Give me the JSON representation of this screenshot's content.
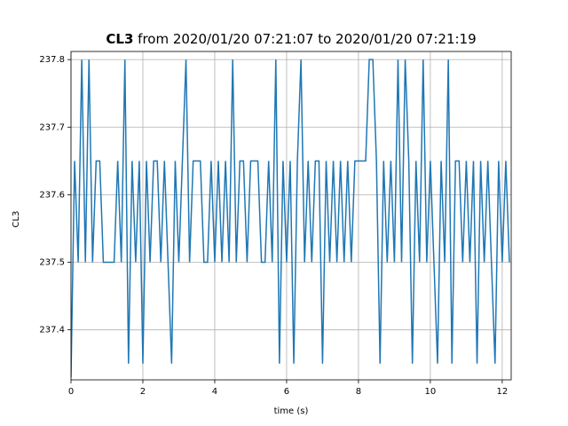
{
  "chart_data": {
    "type": "line",
    "title": {
      "bold": "CL3",
      "rest": "from 2020/01/20 07:21:07 to 2020/01/20 07:21:19"
    },
    "x_label": "time (s)",
    "y_label": "CL3",
    "xlim": [
      0,
      12.25
    ],
    "ylim": [
      237.326,
      237.812
    ],
    "xticks": [
      0,
      2,
      4,
      6,
      8,
      10,
      12
    ],
    "yticks": [
      237.4,
      237.5,
      237.6,
      237.7,
      237.8
    ],
    "grid": true,
    "color": "#1f77b4",
    "x": [
      0,
      0.1,
      0.2,
      0.3,
      0.4,
      0.5,
      0.6,
      0.7,
      0.8,
      0.9,
      1.0,
      1.1,
      1.2,
      1.3,
      1.4,
      1.5,
      1.6,
      1.7,
      1.8,
      1.9,
      2.0,
      2.1,
      2.2,
      2.3,
      2.4,
      2.5,
      2.6,
      2.7,
      2.8,
      2.9,
      3.0,
      3.1,
      3.2,
      3.3,
      3.4,
      3.5,
      3.6,
      3.7,
      3.8,
      3.9,
      4.0,
      4.1,
      4.2,
      4.3,
      4.4,
      4.5,
      4.6,
      4.7,
      4.8,
      4.9,
      5.0,
      5.1,
      5.2,
      5.3,
      5.4,
      5.5,
      5.6,
      5.7,
      5.8,
      5.9,
      6.0,
      6.1,
      6.2,
      6.3,
      6.4,
      6.5,
      6.6,
      6.7,
      6.8,
      6.9,
      7.0,
      7.1,
      7.2,
      7.3,
      7.4,
      7.5,
      7.6,
      7.7,
      7.8,
      7.9,
      8.0,
      8.1,
      8.2,
      8.3,
      8.4,
      8.5,
      8.6,
      8.7,
      8.8,
      8.9,
      9.0,
      9.1,
      9.2,
      9.3,
      9.4,
      9.5,
      9.6,
      9.7,
      9.8,
      9.9,
      10.0,
      10.1,
      10.2,
      10.3,
      10.4,
      10.5,
      10.6,
      10.7,
      10.8,
      10.9,
      11.0,
      11.1,
      11.2,
      11.3,
      11.4,
      11.5,
      11.6,
      11.7,
      11.8,
      11.9,
      12.0,
      12.1,
      12.2
    ],
    "values": [
      237.33,
      237.65,
      237.5,
      237.8,
      237.5,
      237.8,
      237.5,
      237.65,
      237.65,
      237.5,
      237.5,
      237.5,
      237.5,
      237.65,
      237.5,
      237.8,
      237.35,
      237.65,
      237.5,
      237.65,
      237.35,
      237.65,
      237.5,
      237.65,
      237.65,
      237.5,
      237.65,
      237.5,
      237.35,
      237.65,
      237.5,
      237.65,
      237.8,
      237.5,
      237.65,
      237.65,
      237.65,
      237.5,
      237.5,
      237.65,
      237.5,
      237.65,
      237.5,
      237.65,
      237.5,
      237.8,
      237.5,
      237.65,
      237.65,
      237.5,
      237.65,
      237.65,
      237.65,
      237.5,
      237.5,
      237.65,
      237.5,
      237.8,
      237.35,
      237.65,
      237.5,
      237.65,
      237.35,
      237.65,
      237.8,
      237.5,
      237.65,
      237.5,
      237.65,
      237.65,
      237.35,
      237.65,
      237.5,
      237.65,
      237.5,
      237.65,
      237.5,
      237.65,
      237.5,
      237.65,
      237.65,
      237.65,
      237.65,
      237.8,
      237.8,
      237.65,
      237.35,
      237.65,
      237.5,
      237.65,
      237.5,
      237.8,
      237.5,
      237.8,
      237.65,
      237.35,
      237.65,
      237.5,
      237.8,
      237.5,
      237.65,
      237.5,
      237.35,
      237.65,
      237.5,
      237.8,
      237.35,
      237.65,
      237.65,
      237.5,
      237.65,
      237.5,
      237.65,
      237.35,
      237.65,
      237.5,
      237.65,
      237.5,
      237.35,
      237.65,
      237.5,
      237.65,
      237.5
    ]
  }
}
